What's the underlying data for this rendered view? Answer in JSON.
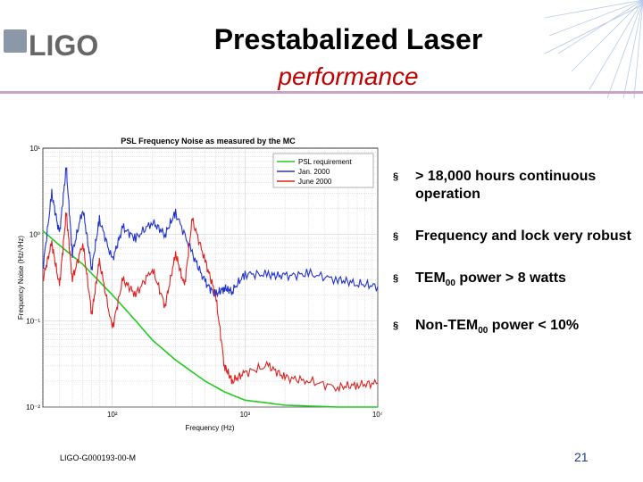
{
  "logo": {
    "text": "LIGO"
  },
  "slide": {
    "title": "Prestabalized Laser",
    "subtitle": "performance",
    "footer": "LIGO-G000193-00-M",
    "page_number": "21"
  },
  "bullets": [
    {
      "marker": "§",
      "text": "> 18,000 hours continuous operation"
    },
    {
      "marker": "§",
      "prefix": "TEM",
      "sub": "00",
      "suffix": " power > 8 watts"
    }
  ],
  "bullet_extra": [
    {
      "marker": "§",
      "text": "Frequency and lock very robust"
    },
    {
      "marker": "§",
      "prefix": "Non-TEM",
      "sub": "00",
      "suffix": " power < 10%"
    }
  ],
  "chart_data": {
    "type": "line",
    "title": "PSL Frequency Noise as measured by the MC",
    "xlabel": "Frequency (Hz)",
    "ylabel": "Frequency Noise (Hz/√Hz)",
    "xscale": "log",
    "yscale": "log",
    "xlim": [
      30,
      10000
    ],
    "ylim": [
      0.01,
      10
    ],
    "x_ticks": [
      "10²",
      "10³",
      "10⁴"
    ],
    "y_ticks": [
      "10¹",
      "10⁰",
      "10⁻¹",
      "10⁻²"
    ],
    "grid": true,
    "legend_position": "top-right",
    "series": [
      {
        "name": "PSL requirement",
        "color": "#22cc22",
        "x": [
          30,
          40,
          60,
          100,
          150,
          200,
          300,
          500,
          700,
          1000,
          2000,
          5000,
          10000
        ],
        "y": [
          1.1,
          0.75,
          0.45,
          0.2,
          0.1,
          0.06,
          0.035,
          0.02,
          0.015,
          0.012,
          0.0105,
          0.01,
          0.01
        ]
      },
      {
        "name": "Jan. 2000",
        "color": "#2233cc",
        "x": [
          30,
          35,
          40,
          45,
          50,
          60,
          70,
          80,
          100,
          120,
          150,
          200,
          250,
          300,
          400,
          500,
          600,
          700,
          800,
          1000,
          1500,
          2000,
          3000,
          5000,
          7000,
          10000
        ],
        "y": [
          0.4,
          3,
          1,
          6,
          0.6,
          2,
          0.4,
          1.5,
          0.5,
          1.2,
          0.9,
          1.4,
          1.0,
          1.8,
          0.6,
          0.28,
          0.2,
          0.24,
          0.22,
          0.35,
          0.34,
          0.33,
          0.35,
          0.3,
          0.27,
          0.25
        ]
      },
      {
        "name": "June 2000",
        "color": "#dd2222",
        "x": [
          30,
          35,
          40,
          45,
          50,
          60,
          70,
          80,
          100,
          120,
          150,
          200,
          250,
          300,
          350,
          400,
          500,
          600,
          700,
          800,
          1000,
          1500,
          2000,
          3000,
          5000,
          7000,
          10000
        ],
        "y": [
          0.3,
          0.8,
          0.25,
          1.8,
          0.3,
          0.8,
          0.12,
          0.5,
          0.08,
          0.3,
          0.2,
          0.4,
          0.15,
          0.6,
          0.25,
          1.5,
          0.5,
          0.2,
          0.03,
          0.02,
          0.025,
          0.03,
          0.022,
          0.02,
          0.017,
          0.018,
          0.019
        ]
      }
    ]
  }
}
